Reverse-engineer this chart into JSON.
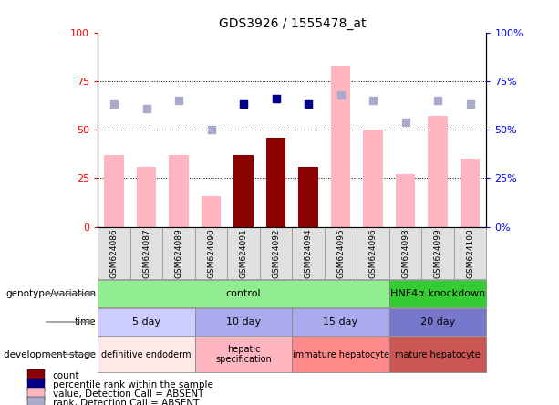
{
  "title": "GDS3926 / 1555478_at",
  "samples": [
    "GSM624086",
    "GSM624087",
    "GSM624089",
    "GSM624090",
    "GSM624091",
    "GSM624092",
    "GSM624094",
    "GSM624095",
    "GSM624096",
    "GSM624098",
    "GSM624099",
    "GSM624100"
  ],
  "count_values": [
    0,
    0,
    0,
    0,
    37,
    46,
    31,
    0,
    0,
    0,
    0,
    0
  ],
  "count_absent_values": [
    37,
    31,
    37,
    16,
    0,
    0,
    0,
    83,
    50,
    27,
    57,
    35
  ],
  "rank_absent": [
    63,
    61,
    65,
    50,
    63,
    66,
    63,
    68,
    65,
    54,
    65,
    63
  ],
  "rank_present_bool": [
    false,
    false,
    false,
    false,
    true,
    true,
    true,
    false,
    false,
    false,
    false,
    false
  ],
  "percentile_present": [
    null,
    null,
    null,
    null,
    63,
    66,
    63,
    null,
    null,
    null,
    null,
    null
  ],
  "bar_color_dark": "#8B0000",
  "bar_color_light": "#FFB6C1",
  "dot_color_dark_blue": "#00008B",
  "dot_color_light_blue": "#AAAACC",
  "yticks": [
    0,
    25,
    50,
    75,
    100
  ],
  "genotype_groups": [
    {
      "label": "control",
      "start": 0,
      "end": 9,
      "color": "#90EE90"
    },
    {
      "label": "HNF4α knockdown",
      "start": 9,
      "end": 12,
      "color": "#33CC33"
    }
  ],
  "time_colors": [
    "#CCCCFF",
    "#AAAAEE",
    "#AAAAEE",
    "#7777CC"
  ],
  "time_labels": [
    "5 day",
    "10 day",
    "15 day",
    "20 day"
  ],
  "time_ranges": [
    [
      0,
      3
    ],
    [
      3,
      6
    ],
    [
      6,
      9
    ],
    [
      9,
      12
    ]
  ],
  "dev_groups": [
    {
      "label": "definitive endoderm",
      "start": 0,
      "end": 3,
      "color": "#FFE8E8"
    },
    {
      "label": "hepatic\nspecification",
      "start": 3,
      "end": 6,
      "color": "#FFB6C1"
    },
    {
      "label": "immature hepatocyte",
      "start": 6,
      "end": 9,
      "color": "#FF8888"
    },
    {
      "label": "mature hepatocyte",
      "start": 9,
      "end": 12,
      "color": "#CC5555"
    }
  ],
  "legend_items": [
    {
      "color": "#8B0000",
      "label": "count"
    },
    {
      "color": "#00008B",
      "label": "percentile rank within the sample"
    },
    {
      "color": "#FFB6C1",
      "label": "value, Detection Call = ABSENT"
    },
    {
      "color": "#AAAACC",
      "label": "rank, Detection Call = ABSENT"
    }
  ]
}
